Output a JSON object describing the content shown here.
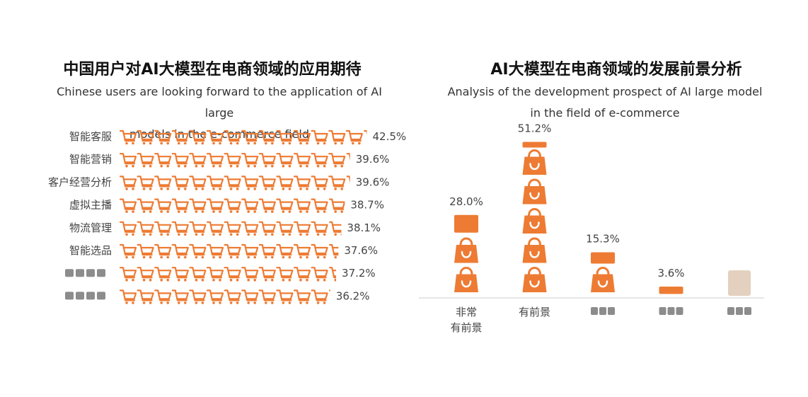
{
  "left_chart": {
    "title": "中国用户对AI大模型在电商领域的应用期待",
    "subtitle_line1": "Chinese users are looking forward to the application of AI large",
    "subtitle_line2": "models in the e-commerce field"
  },
  "right_chart": {
    "title": "AI大模型在电商领域的发展前景分析",
    "subtitle_line1": "Analysis of the development prospect of AI large model",
    "subtitle_line2": "in the field of e-commerce"
  },
  "colors": {
    "accent": "#ED7B33",
    "text": "#444444",
    "baseline": "#dddddd"
  },
  "icons": {
    "bar_unit": "shopping-cart-icon",
    "column_unit": "shopping-bag-icon"
  },
  "chart_data": [
    {
      "type": "bar",
      "orientation": "horizontal",
      "categories": [
        "智能客服",
        "智能营销",
        "客户经营分析",
        "虚拟主播",
        "物流管理",
        "智能选品",
        "",
        ""
      ],
      "values": [
        42.5,
        39.6,
        39.6,
        38.7,
        38.1,
        37.6,
        37.2,
        36.2
      ],
      "value_labels": [
        "42.5%",
        "39.6%",
        "39.6%",
        "38.7%",
        "38.1%",
        "37.6%",
        "37.2%",
        "36.2%"
      ],
      "unit": "%",
      "mark": "shopping-cart-icon"
    },
    {
      "type": "bar",
      "orientation": "vertical",
      "categories": [
        "非常\n有前景",
        "有前景",
        "",
        "",
        ""
      ],
      "values": [
        28.0,
        51.2,
        15.3,
        3.6,
        null
      ],
      "value_labels": [
        "28.0%",
        "51.2%",
        "15.3%",
        "3.6%",
        ""
      ],
      "unit": "%",
      "mark": "shopping-bag-icon"
    }
  ]
}
